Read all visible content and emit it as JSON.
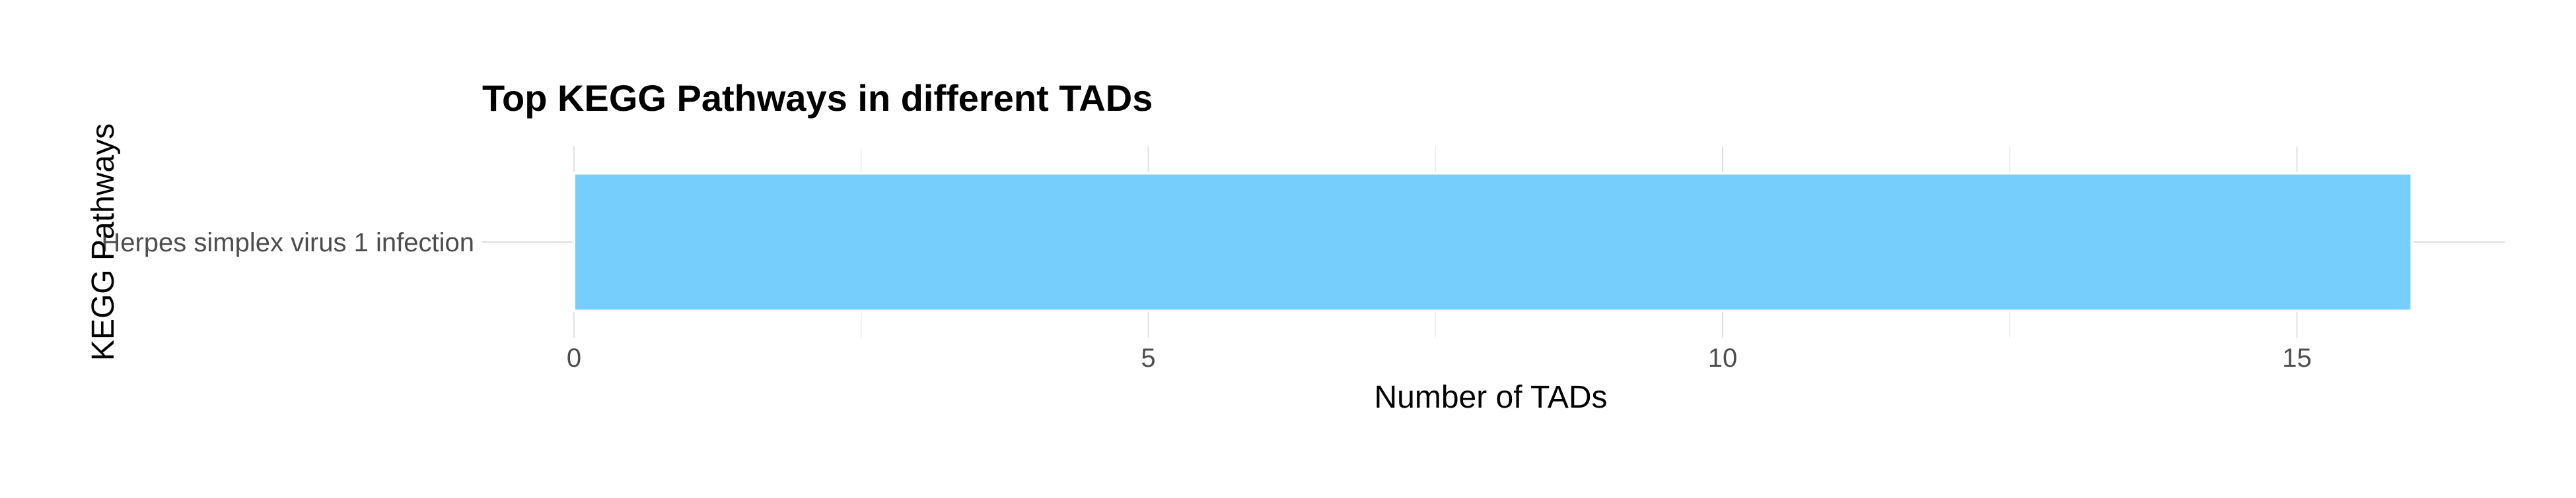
{
  "chart_data": {
    "type": "bar",
    "orientation": "horizontal",
    "title": "Top KEGG Pathways in different TADs",
    "xlabel": "Number of TADs",
    "ylabel": "KEGG Pathways",
    "categories": [
      "Herpes simplex virus 1 infection"
    ],
    "values": [
      16
    ],
    "xlim": [
      0,
      16.8
    ],
    "xticks": [
      "0",
      "5",
      "10",
      "15"
    ],
    "bar_color": "#75CEFB",
    "grid": true,
    "legend": "none"
  }
}
